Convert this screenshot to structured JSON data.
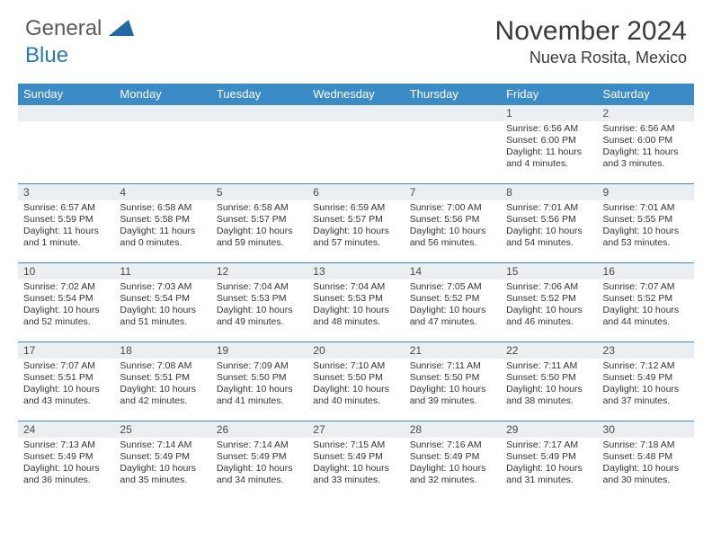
{
  "brand": {
    "part1": "General",
    "part2": "Blue"
  },
  "title": "November 2024",
  "location": "Nueva Rosita, Mexico",
  "colors": {
    "header_bg": "#3b8bc6",
    "header_text": "#ffffff",
    "daynum_bg": "#eceff1",
    "border": "#3b8bc6",
    "body_text": "#333333",
    "logo_gray": "#5b5b5b",
    "logo_blue": "#2a7ab8"
  },
  "weekdays": [
    "Sunday",
    "Monday",
    "Tuesday",
    "Wednesday",
    "Thursday",
    "Friday",
    "Saturday"
  ],
  "weeks": [
    [
      {
        "day": ""
      },
      {
        "day": ""
      },
      {
        "day": ""
      },
      {
        "day": ""
      },
      {
        "day": ""
      },
      {
        "day": "1",
        "sunrise": "Sunrise: 6:56 AM",
        "sunset": "Sunset: 6:00 PM",
        "daylight1": "Daylight: 11 hours",
        "daylight2": "and 4 minutes."
      },
      {
        "day": "2",
        "sunrise": "Sunrise: 6:56 AM",
        "sunset": "Sunset: 6:00 PM",
        "daylight1": "Daylight: 11 hours",
        "daylight2": "and 3 minutes."
      }
    ],
    [
      {
        "day": "3",
        "sunrise": "Sunrise: 6:57 AM",
        "sunset": "Sunset: 5:59 PM",
        "daylight1": "Daylight: 11 hours",
        "daylight2": "and 1 minute."
      },
      {
        "day": "4",
        "sunrise": "Sunrise: 6:58 AM",
        "sunset": "Sunset: 5:58 PM",
        "daylight1": "Daylight: 11 hours",
        "daylight2": "and 0 minutes."
      },
      {
        "day": "5",
        "sunrise": "Sunrise: 6:58 AM",
        "sunset": "Sunset: 5:57 PM",
        "daylight1": "Daylight: 10 hours",
        "daylight2": "and 59 minutes."
      },
      {
        "day": "6",
        "sunrise": "Sunrise: 6:59 AM",
        "sunset": "Sunset: 5:57 PM",
        "daylight1": "Daylight: 10 hours",
        "daylight2": "and 57 minutes."
      },
      {
        "day": "7",
        "sunrise": "Sunrise: 7:00 AM",
        "sunset": "Sunset: 5:56 PM",
        "daylight1": "Daylight: 10 hours",
        "daylight2": "and 56 minutes."
      },
      {
        "day": "8",
        "sunrise": "Sunrise: 7:01 AM",
        "sunset": "Sunset: 5:56 PM",
        "daylight1": "Daylight: 10 hours",
        "daylight2": "and 54 minutes."
      },
      {
        "day": "9",
        "sunrise": "Sunrise: 7:01 AM",
        "sunset": "Sunset: 5:55 PM",
        "daylight1": "Daylight: 10 hours",
        "daylight2": "and 53 minutes."
      }
    ],
    [
      {
        "day": "10",
        "sunrise": "Sunrise: 7:02 AM",
        "sunset": "Sunset: 5:54 PM",
        "daylight1": "Daylight: 10 hours",
        "daylight2": "and 52 minutes."
      },
      {
        "day": "11",
        "sunrise": "Sunrise: 7:03 AM",
        "sunset": "Sunset: 5:54 PM",
        "daylight1": "Daylight: 10 hours",
        "daylight2": "and 51 minutes."
      },
      {
        "day": "12",
        "sunrise": "Sunrise: 7:04 AM",
        "sunset": "Sunset: 5:53 PM",
        "daylight1": "Daylight: 10 hours",
        "daylight2": "and 49 minutes."
      },
      {
        "day": "13",
        "sunrise": "Sunrise: 7:04 AM",
        "sunset": "Sunset: 5:53 PM",
        "daylight1": "Daylight: 10 hours",
        "daylight2": "and 48 minutes."
      },
      {
        "day": "14",
        "sunrise": "Sunrise: 7:05 AM",
        "sunset": "Sunset: 5:52 PM",
        "daylight1": "Daylight: 10 hours",
        "daylight2": "and 47 minutes."
      },
      {
        "day": "15",
        "sunrise": "Sunrise: 7:06 AM",
        "sunset": "Sunset: 5:52 PM",
        "daylight1": "Daylight: 10 hours",
        "daylight2": "and 46 minutes."
      },
      {
        "day": "16",
        "sunrise": "Sunrise: 7:07 AM",
        "sunset": "Sunset: 5:52 PM",
        "daylight1": "Daylight: 10 hours",
        "daylight2": "and 44 minutes."
      }
    ],
    [
      {
        "day": "17",
        "sunrise": "Sunrise: 7:07 AM",
        "sunset": "Sunset: 5:51 PM",
        "daylight1": "Daylight: 10 hours",
        "daylight2": "and 43 minutes."
      },
      {
        "day": "18",
        "sunrise": "Sunrise: 7:08 AM",
        "sunset": "Sunset: 5:51 PM",
        "daylight1": "Daylight: 10 hours",
        "daylight2": "and 42 minutes."
      },
      {
        "day": "19",
        "sunrise": "Sunrise: 7:09 AM",
        "sunset": "Sunset: 5:50 PM",
        "daylight1": "Daylight: 10 hours",
        "daylight2": "and 41 minutes."
      },
      {
        "day": "20",
        "sunrise": "Sunrise: 7:10 AM",
        "sunset": "Sunset: 5:50 PM",
        "daylight1": "Daylight: 10 hours",
        "daylight2": "and 40 minutes."
      },
      {
        "day": "21",
        "sunrise": "Sunrise: 7:11 AM",
        "sunset": "Sunset: 5:50 PM",
        "daylight1": "Daylight: 10 hours",
        "daylight2": "and 39 minutes."
      },
      {
        "day": "22",
        "sunrise": "Sunrise: 7:11 AM",
        "sunset": "Sunset: 5:50 PM",
        "daylight1": "Daylight: 10 hours",
        "daylight2": "and 38 minutes."
      },
      {
        "day": "23",
        "sunrise": "Sunrise: 7:12 AM",
        "sunset": "Sunset: 5:49 PM",
        "daylight1": "Daylight: 10 hours",
        "daylight2": "and 37 minutes."
      }
    ],
    [
      {
        "day": "24",
        "sunrise": "Sunrise: 7:13 AM",
        "sunset": "Sunset: 5:49 PM",
        "daylight1": "Daylight: 10 hours",
        "daylight2": "and 36 minutes."
      },
      {
        "day": "25",
        "sunrise": "Sunrise: 7:14 AM",
        "sunset": "Sunset: 5:49 PM",
        "daylight1": "Daylight: 10 hours",
        "daylight2": "and 35 minutes."
      },
      {
        "day": "26",
        "sunrise": "Sunrise: 7:14 AM",
        "sunset": "Sunset: 5:49 PM",
        "daylight1": "Daylight: 10 hours",
        "daylight2": "and 34 minutes."
      },
      {
        "day": "27",
        "sunrise": "Sunrise: 7:15 AM",
        "sunset": "Sunset: 5:49 PM",
        "daylight1": "Daylight: 10 hours",
        "daylight2": "and 33 minutes."
      },
      {
        "day": "28",
        "sunrise": "Sunrise: 7:16 AM",
        "sunset": "Sunset: 5:49 PM",
        "daylight1": "Daylight: 10 hours",
        "daylight2": "and 32 minutes."
      },
      {
        "day": "29",
        "sunrise": "Sunrise: 7:17 AM",
        "sunset": "Sunset: 5:49 PM",
        "daylight1": "Daylight: 10 hours",
        "daylight2": "and 31 minutes."
      },
      {
        "day": "30",
        "sunrise": "Sunrise: 7:18 AM",
        "sunset": "Sunset: 5:48 PM",
        "daylight1": "Daylight: 10 hours",
        "daylight2": "and 30 minutes."
      }
    ]
  ]
}
